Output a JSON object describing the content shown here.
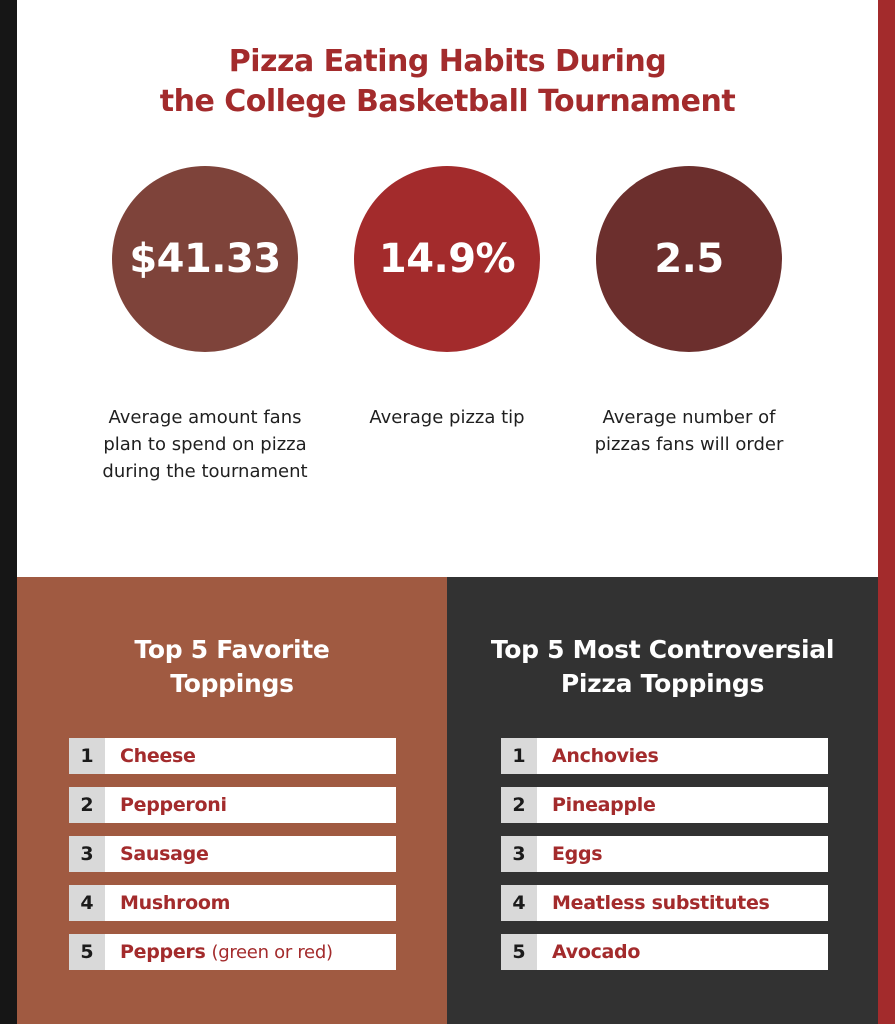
{
  "title": {
    "line1": "Pizza Eating Habits During",
    "line2": "the College Basketball Tournament"
  },
  "stats": [
    {
      "value": "$41.33",
      "description": [
        "Average amount fans",
        "plan to spend on pizza",
        "during the tournament"
      ],
      "color": "#7e433a"
    },
    {
      "value": "14.9%",
      "description": [
        "Average pizza tip"
      ],
      "color": "#a32b2c"
    },
    {
      "value": "2.5",
      "description": [
        "Average number of",
        "pizzas fans will order"
      ],
      "color": "#6c2f2d"
    }
  ],
  "favorites": {
    "title_line1": "Top 5 Favorite",
    "title_line2": "Toppings",
    "items": [
      {
        "rank": "1",
        "label": "Cheese",
        "note": ""
      },
      {
        "rank": "2",
        "label": "Pepperoni",
        "note": ""
      },
      {
        "rank": "3",
        "label": "Sausage",
        "note": ""
      },
      {
        "rank": "4",
        "label": "Mushroom",
        "note": ""
      },
      {
        "rank": "5",
        "label": "Peppers",
        "note": "(green or red)"
      }
    ]
  },
  "controversial": {
    "title_line1": "Top 5 Most Controversial",
    "title_line2": "Pizza Toppings",
    "items": [
      {
        "rank": "1",
        "label": "Anchovies"
      },
      {
        "rank": "2",
        "label": "Pineapple"
      },
      {
        "rank": "3",
        "label": "Eggs"
      },
      {
        "rank": "4",
        "label": "Meatless substitutes"
      },
      {
        "rank": "5",
        "label": "Avocado"
      }
    ]
  },
  "colors": {
    "accent": "#a32b2c",
    "left_panel": "#a05a41",
    "right_panel": "#323232"
  }
}
